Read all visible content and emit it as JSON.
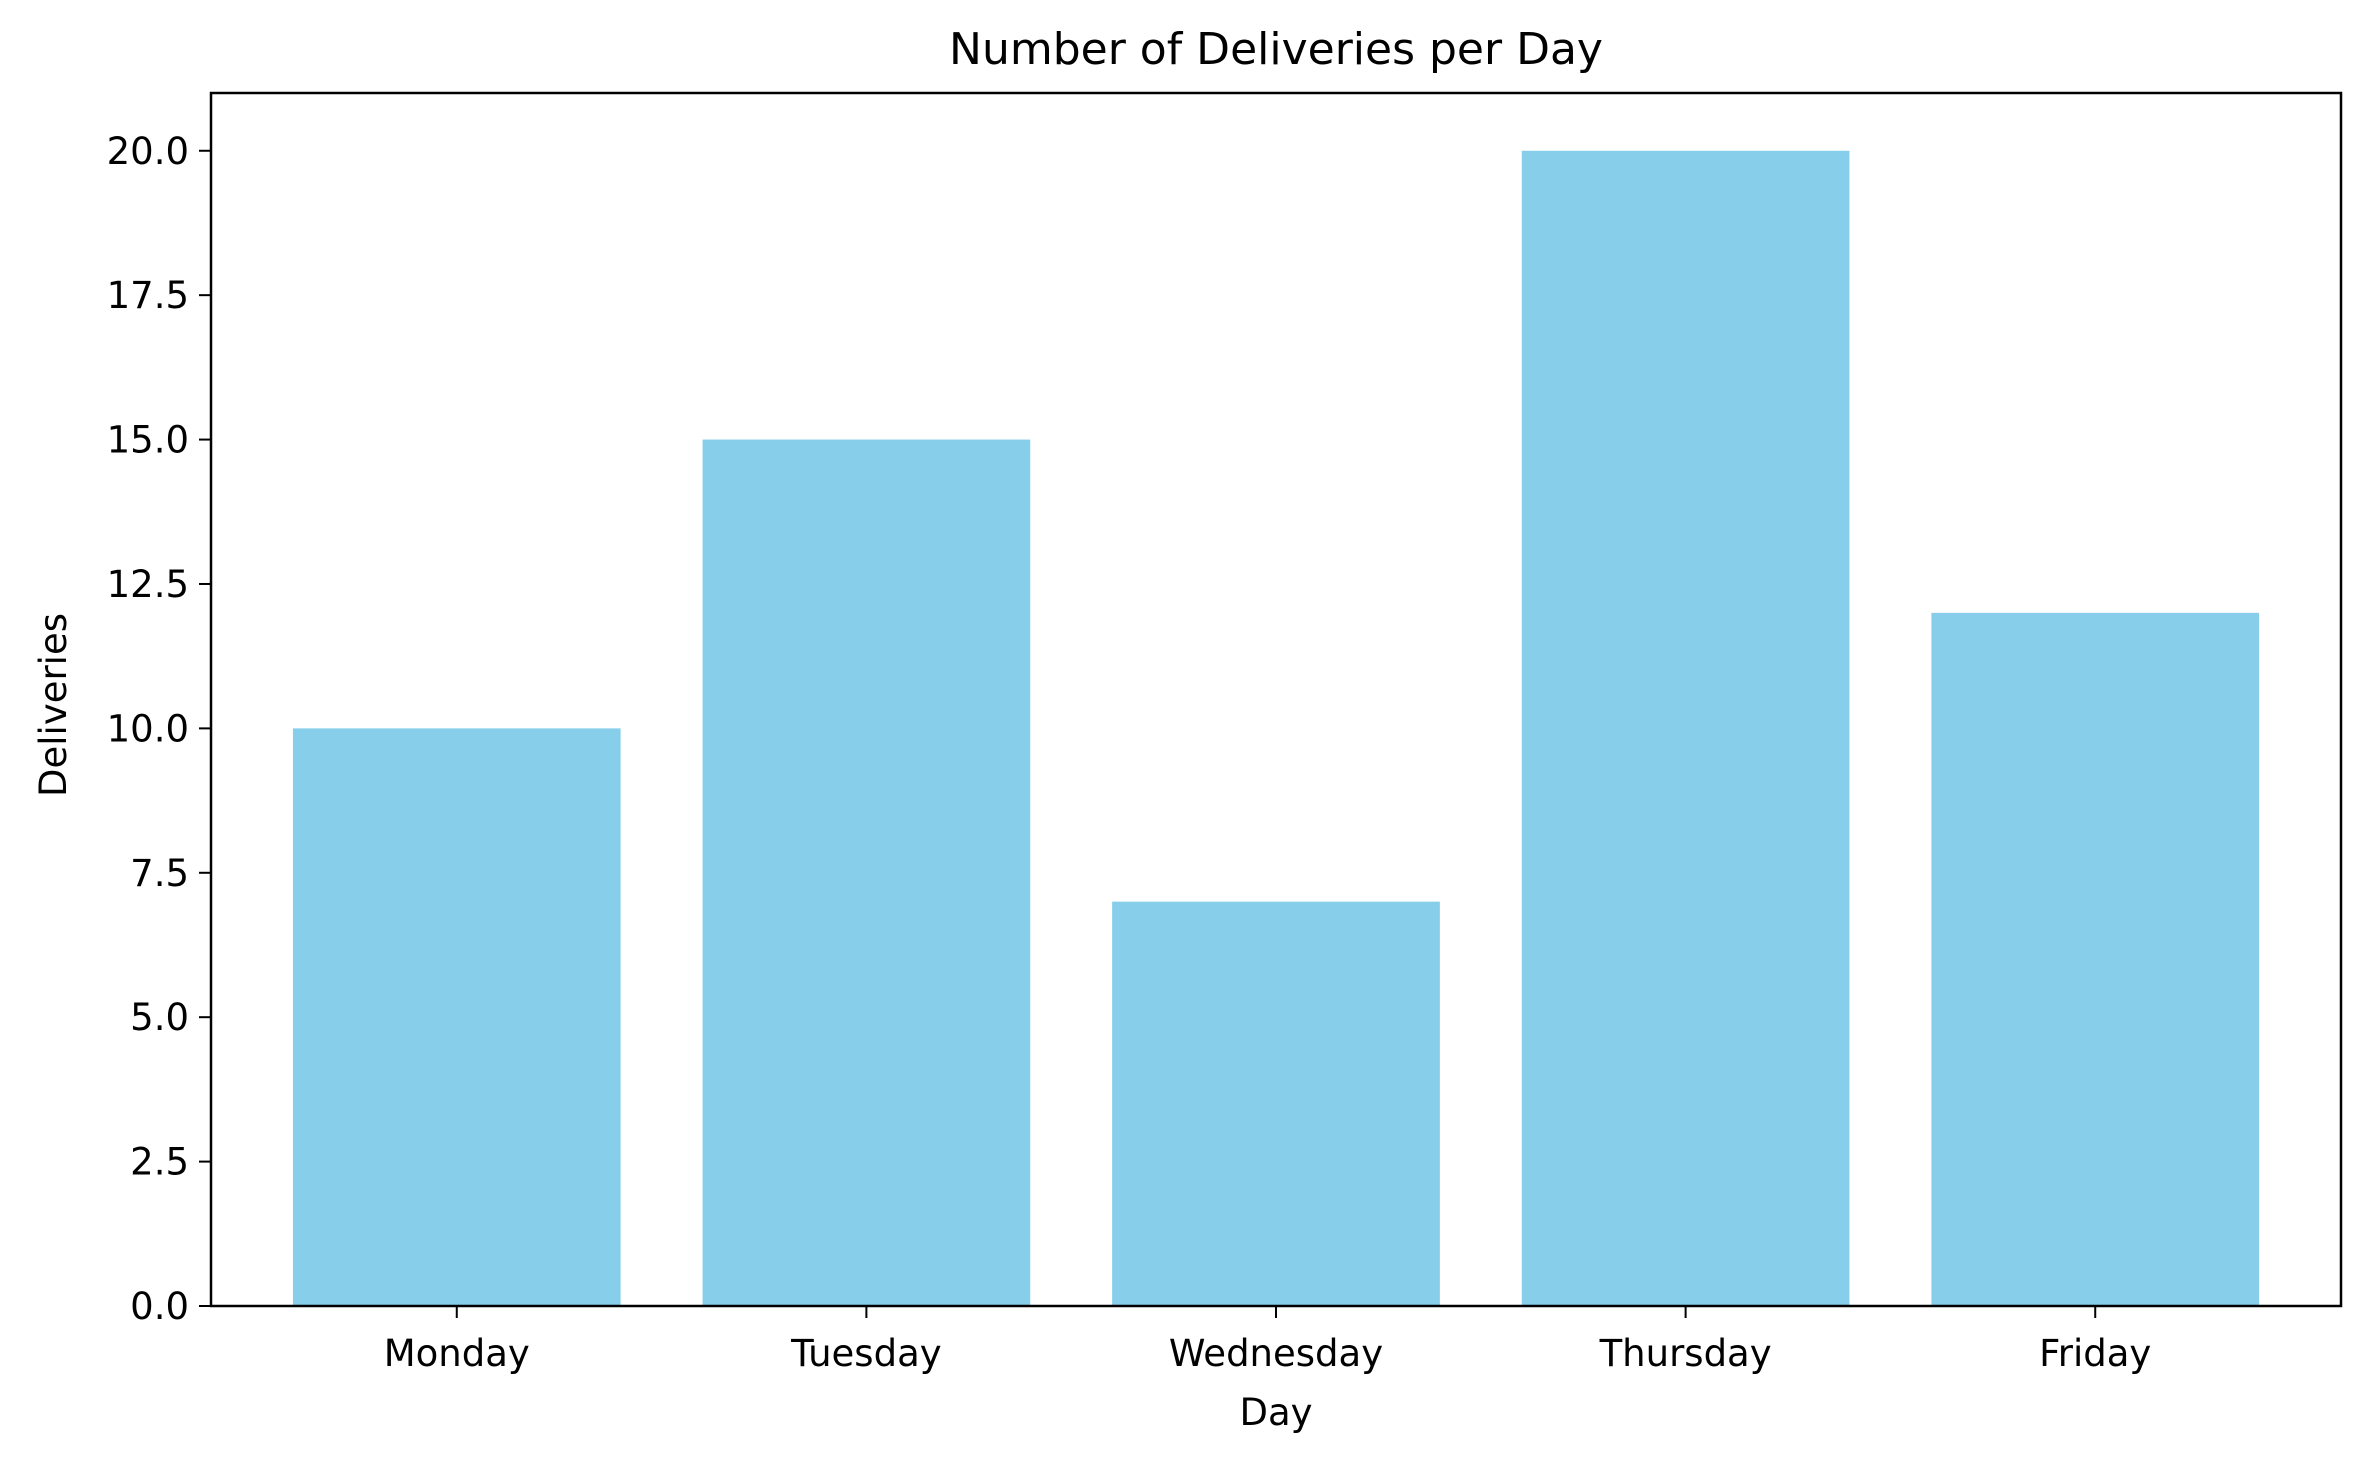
{
  "chart_data": {
    "type": "bar",
    "title": "Number of Deliveries per Day",
    "xlabel": "Day",
    "ylabel": "Deliveries",
    "categories": [
      "Monday",
      "Tuesday",
      "Wednesday",
      "Thursday",
      "Friday"
    ],
    "values": [
      10,
      15,
      7,
      20,
      12
    ],
    "ylim": [
      0,
      21
    ],
    "yticks": [
      "0.0",
      "2.5",
      "5.0",
      "7.5",
      "10.0",
      "12.5",
      "15.0",
      "17.5",
      "20.0"
    ],
    "bar_color": "#87CEEB",
    "grid": false,
    "legend": "none"
  }
}
